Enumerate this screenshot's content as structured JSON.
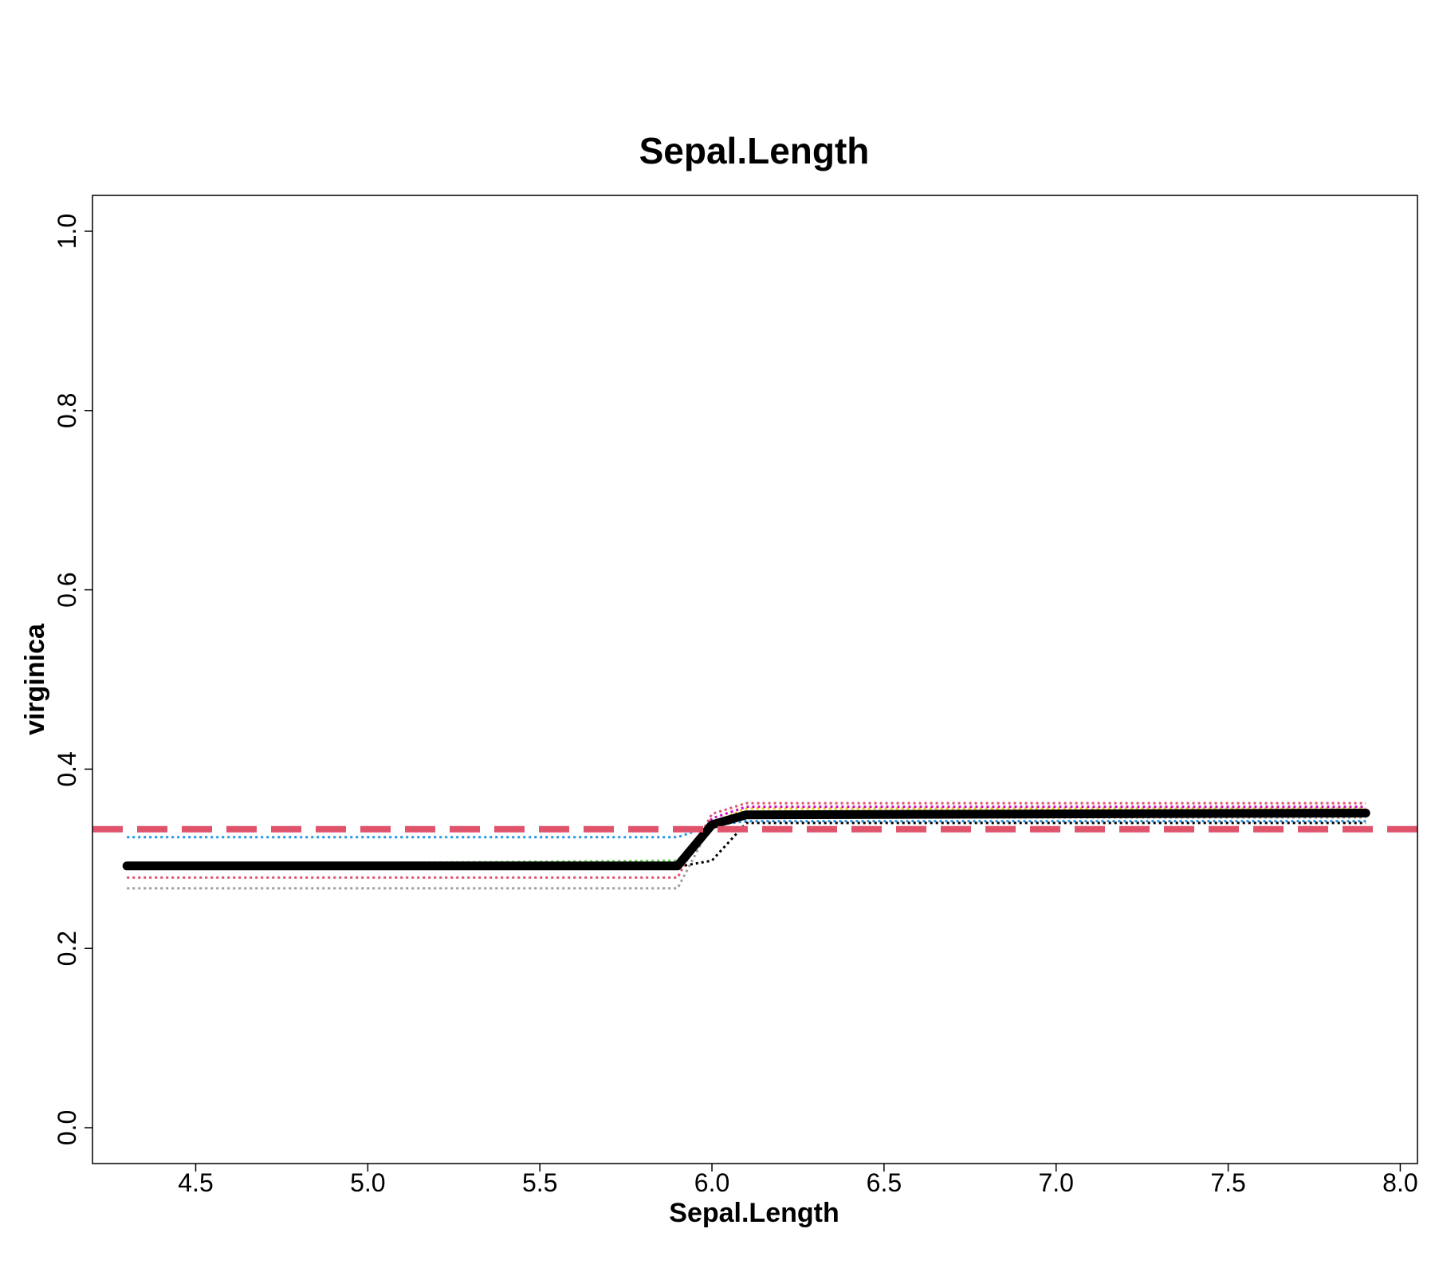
{
  "chart_data": {
    "type": "line",
    "title": "Sepal.Length",
    "xlabel": "Sepal.Length",
    "ylabel": "virginica",
    "xlim": [
      4.2,
      8.05
    ],
    "ylim": [
      -0.04,
      1.04
    ],
    "xticks": [
      4.5,
      5.0,
      5.5,
      6.0,
      6.5,
      7.0,
      7.5,
      8.0
    ],
    "xtick_labels": [
      "4.5",
      "5.0",
      "5.5",
      "6.0",
      "6.5",
      "7.0",
      "7.5",
      "8.0"
    ],
    "yticks": [
      0.0,
      0.2,
      0.4,
      0.6,
      0.8,
      1.0
    ],
    "ytick_labels": [
      "0.0",
      "0.2",
      "0.4",
      "0.6",
      "0.8",
      "1.0"
    ],
    "grid": false,
    "reference_line": {
      "y": 0.333,
      "color": "#DF536B",
      "style": "dashed"
    },
    "mean_curve": {
      "color": "#000000",
      "x": [
        4.3,
        5.9,
        6.0,
        6.1,
        7.9
      ],
      "y": [
        0.292,
        0.292,
        0.338,
        0.349,
        0.351
      ]
    },
    "series": [
      {
        "color": "#2297E6",
        "x": [
          4.3,
          5.9,
          6.0,
          6.1,
          7.9
        ],
        "y": [
          0.324,
          0.324,
          0.337,
          0.342,
          0.342
        ]
      },
      {
        "color": "#DF536B",
        "x": [
          4.3,
          5.9,
          6.0,
          6.1,
          7.9
        ],
        "y": [
          0.279,
          0.279,
          0.35,
          0.362,
          0.362
        ]
      },
      {
        "color": "#9E9E9E",
        "x": [
          4.3,
          5.9,
          6.0,
          6.1,
          7.9
        ],
        "y": [
          0.267,
          0.267,
          0.34,
          0.346,
          0.346
        ]
      },
      {
        "color": "#61D04F",
        "x": [
          4.3,
          5.9,
          6.0,
          6.1,
          7.9
        ],
        "y": [
          0.293,
          0.298,
          0.337,
          0.352,
          0.352
        ]
      },
      {
        "color": "#000000",
        "x": [
          4.3,
          5.9,
          6.0,
          6.1,
          7.9
        ],
        "y": [
          0.291,
          0.291,
          0.298,
          0.34,
          0.34
        ]
      },
      {
        "color": "#F5C710",
        "x": [
          4.3,
          5.9,
          6.0,
          6.1,
          7.9
        ],
        "y": [
          0.292,
          0.292,
          0.34,
          0.356,
          0.356
        ]
      },
      {
        "color": "#CD0BBC",
        "x": [
          4.3,
          5.9,
          6.0,
          6.1,
          7.9
        ],
        "y": [
          0.29,
          0.29,
          0.345,
          0.358,
          0.358
        ]
      },
      {
        "color": "#28E2E5",
        "x": [
          4.3,
          5.9,
          6.0,
          6.1,
          7.9
        ],
        "y": [
          0.291,
          0.291,
          0.336,
          0.348,
          0.348
        ]
      }
    ]
  }
}
